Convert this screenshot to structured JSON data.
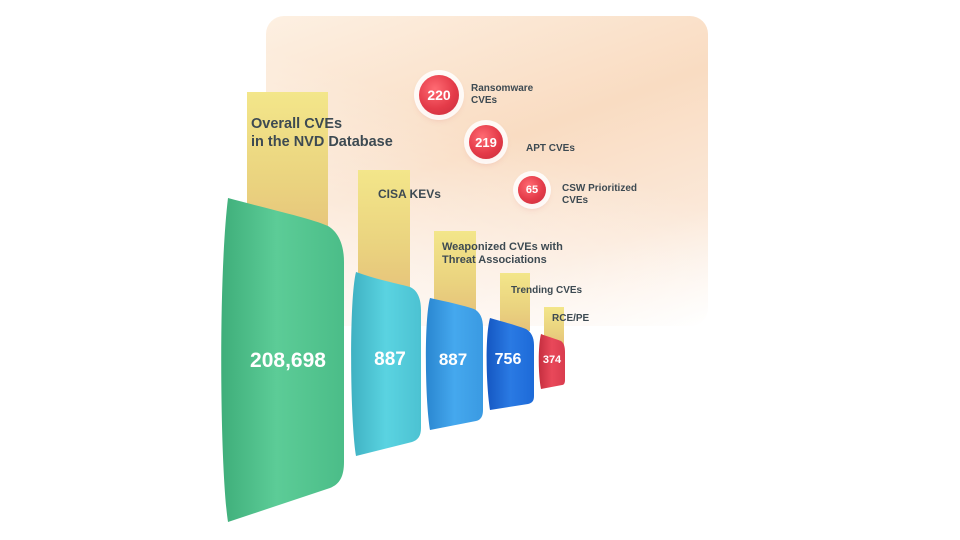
{
  "funnel": {
    "stages": [
      {
        "label": "Overall CVEs\nin the NVD Database",
        "value": "208,698",
        "color": "#52c48f"
      },
      {
        "label": "CISA KEVs",
        "value": "887",
        "color": "#52c8d8"
      },
      {
        "label": "Weaponized CVEs with\n Threat Associations",
        "value": "887",
        "color": "#3a9fe6"
      },
      {
        "label": "Trending CVEs",
        "value": "756",
        "color": "#1f6fd9"
      },
      {
        "label": "RCE/PE",
        "value": "374",
        "color": "#e0414f"
      }
    ]
  },
  "badges": [
    {
      "value": "220",
      "label": "Ransomware\nCVEs"
    },
    {
      "value": "219",
      "label": "APT CVEs"
    },
    {
      "value": "65",
      "label": "CSW Prioritized\nCVEs"
    }
  ]
}
